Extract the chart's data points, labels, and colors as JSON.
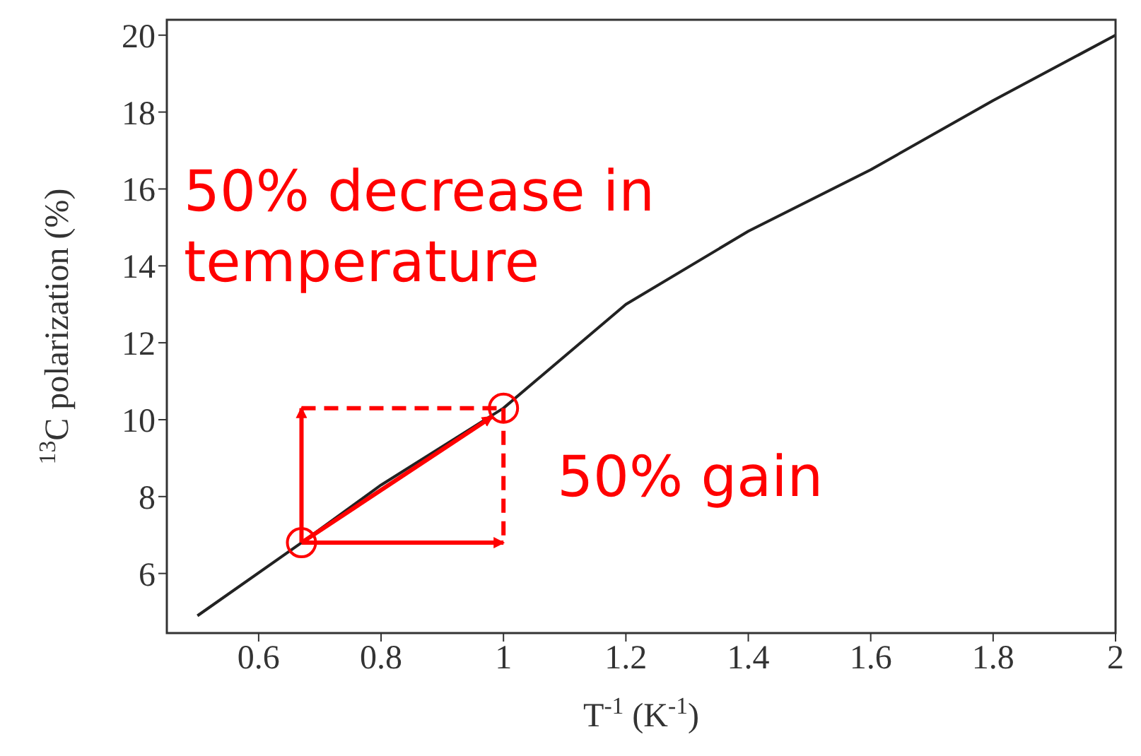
{
  "chart_data": {
    "type": "line",
    "xlabel": "T$^{-1}$ (K$^{-1}$)",
    "ylabel": "$^{13}$C polarization (%)",
    "x": [
      0.5,
      0.67,
      0.8,
      1.0,
      1.2,
      1.4,
      1.6,
      1.8,
      2.0
    ],
    "series": [
      {
        "color": "#222222",
        "values": [
          4.9,
          6.8,
          8.3,
          10.3,
          13.0,
          14.9,
          16.5,
          18.3,
          20.0
        ]
      },
      {
        "type": "scatter",
        "color": "#ff0000",
        "marker": "circle",
        "x": [
          0.67,
          1.0
        ],
        "values": [
          6.8,
          10.3
        ]
      }
    ],
    "xlim": [
      0.45,
      2
    ],
    "xticks": [
      0.6,
      0.8,
      1,
      1.2,
      1.4,
      1.6,
      1.8,
      2
    ],
    "ylim": [
      4.45,
      20.4
    ],
    "yticks": [
      6,
      8,
      10,
      12,
      14,
      16,
      18,
      20
    ],
    "grid": false,
    "legend": false,
    "marker": "none",
    "line_style": "solid",
    "annotations": [
      "50% decrease in temperature",
      "50% gain"
    ]
  }
}
